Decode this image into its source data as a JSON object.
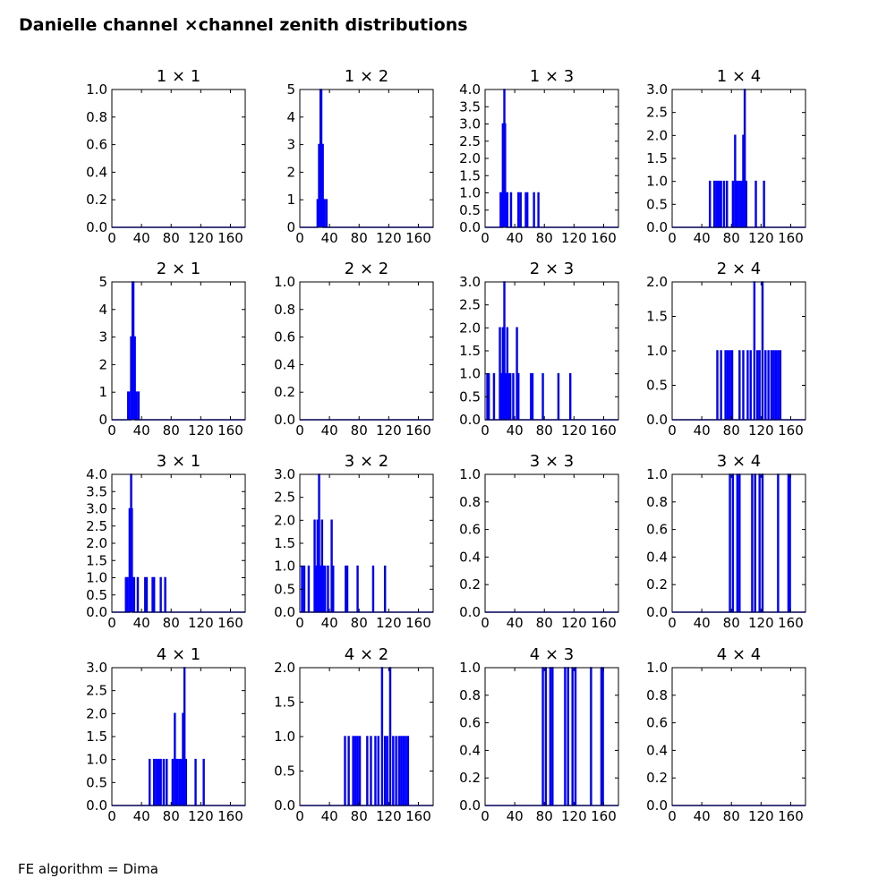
{
  "figure": {
    "title": "Danielle channel ×channel zenith distributions",
    "footer": "FE algorithm = Dima"
  },
  "chart_data": {
    "type": "line",
    "drawstyle": "steps",
    "series_color": "#0000ff",
    "x_ticks": [
      0,
      40,
      80,
      120,
      160
    ],
    "xlim": [
      0,
      180
    ],
    "panels": [
      {
        "title": "1 × 1",
        "ylim": [
          0,
          1
        ],
        "yticks": [
          "0.0",
          "0.2",
          "0.4",
          "0.6",
          "0.8",
          "1.0"
        ],
        "yvals": [
          0,
          0.2,
          0.4,
          0.6,
          0.8,
          1.0
        ],
        "spikes": []
      },
      {
        "title": "1 × 2",
        "ylim": [
          0,
          5
        ],
        "yticks": [
          "0",
          "1",
          "2",
          "3",
          "4",
          "5"
        ],
        "yvals": [
          0,
          1,
          2,
          3,
          4,
          5
        ],
        "spikes": [
          [
            24,
            1
          ],
          [
            25,
            1
          ],
          [
            26,
            3
          ],
          [
            27,
            3
          ],
          [
            28,
            5
          ],
          [
            29,
            5
          ],
          [
            30,
            3
          ],
          [
            31,
            3
          ],
          [
            33,
            1
          ],
          [
            36,
            1
          ]
        ]
      },
      {
        "title": "1 × 3",
        "ylim": [
          0,
          4
        ],
        "yticks": [
          "0.0",
          "0.5",
          "1.0",
          "1.5",
          "2.0",
          "2.5",
          "3.0",
          "3.5",
          "4.0"
        ],
        "yvals": [
          0,
          0.5,
          1,
          1.5,
          2,
          2.5,
          3,
          3.5,
          4
        ],
        "spikes": [
          [
            21,
            1
          ],
          [
            22,
            1
          ],
          [
            24,
            3
          ],
          [
            25,
            3
          ],
          [
            26,
            4
          ],
          [
            27,
            3
          ],
          [
            28,
            1
          ],
          [
            30,
            1
          ],
          [
            35,
            1
          ],
          [
            45,
            1
          ],
          [
            48,
            1
          ],
          [
            55,
            1
          ],
          [
            57,
            1
          ],
          [
            66,
            1
          ],
          [
            72,
            1
          ]
        ]
      },
      {
        "title": "1 × 4",
        "ylim": [
          0,
          3
        ],
        "yticks": [
          "0.0",
          "0.5",
          "1.0",
          "1.5",
          "2.0",
          "2.5",
          "3.0"
        ],
        "yvals": [
          0,
          0.5,
          1,
          1.5,
          2,
          2.5,
          3
        ],
        "spikes": [
          [
            51,
            1
          ],
          [
            57,
            1
          ],
          [
            60,
            1
          ],
          [
            62,
            1
          ],
          [
            64,
            1
          ],
          [
            66,
            1
          ],
          [
            70,
            1
          ],
          [
            74,
            1
          ],
          [
            82,
            1
          ],
          [
            85,
            2
          ],
          [
            87,
            1
          ],
          [
            89,
            1
          ],
          [
            92,
            1
          ],
          [
            94,
            1
          ],
          [
            96,
            2
          ],
          [
            98,
            3
          ],
          [
            100,
            1
          ],
          [
            113,
            1
          ],
          [
            124,
            1
          ]
        ]
      },
      {
        "title": "2 × 1",
        "ylim": [
          0,
          5
        ],
        "yticks": [
          "0",
          "1",
          "2",
          "3",
          "4",
          "5"
        ],
        "yvals": [
          0,
          1,
          2,
          3,
          4,
          5
        ],
        "spikes": [
          [
            22,
            1
          ],
          [
            23,
            1
          ],
          [
            26,
            3
          ],
          [
            27,
            3
          ],
          [
            28,
            5
          ],
          [
            29,
            5
          ],
          [
            30,
            3
          ],
          [
            31,
            3
          ],
          [
            33,
            1
          ],
          [
            36,
            1
          ]
        ]
      },
      {
        "title": "2 × 2",
        "ylim": [
          0,
          1
        ],
        "yticks": [
          "0.0",
          "0.2",
          "0.4",
          "0.6",
          "0.8",
          "1.0"
        ],
        "yvals": [
          0,
          0.2,
          0.4,
          0.6,
          0.8,
          1.0
        ],
        "spikes": []
      },
      {
        "title": "2 × 3",
        "ylim": [
          0,
          3
        ],
        "yticks": [
          "0.0",
          "0.5",
          "1.0",
          "1.5",
          "2.0",
          "2.5",
          "3.0"
        ],
        "yvals": [
          0,
          0.5,
          1,
          1.5,
          2,
          2.5,
          3
        ],
        "spikes": [
          [
            3,
            1
          ],
          [
            5,
            1
          ],
          [
            12,
            1
          ],
          [
            20,
            2
          ],
          [
            22,
            1
          ],
          [
            24,
            2
          ],
          [
            26,
            3
          ],
          [
            28,
            1
          ],
          [
            30,
            2
          ],
          [
            32,
            1
          ],
          [
            34,
            1
          ],
          [
            38,
            1
          ],
          [
            43,
            2
          ],
          [
            45,
            1
          ],
          [
            62,
            1
          ],
          [
            64,
            1
          ],
          [
            78,
            1
          ],
          [
            99,
            1
          ],
          [
            115,
            1
          ]
        ]
      },
      {
        "title": "2 × 4",
        "ylim": [
          0,
          2
        ],
        "yticks": [
          "0.0",
          "0.5",
          "1.0",
          "1.5",
          "2.0"
        ],
        "yvals": [
          0,
          0.5,
          1,
          1.5,
          2
        ],
        "spikes": [
          [
            61,
            1
          ],
          [
            66,
            1
          ],
          [
            72,
            1
          ],
          [
            75,
            1
          ],
          [
            78,
            1
          ],
          [
            81,
            1
          ],
          [
            91,
            1
          ],
          [
            96,
            1
          ],
          [
            102,
            1
          ],
          [
            106,
            1
          ],
          [
            111,
            2
          ],
          [
            115,
            1
          ],
          [
            118,
            1
          ],
          [
            122,
            2
          ],
          [
            126,
            1
          ],
          [
            130,
            1
          ],
          [
            134,
            1
          ],
          [
            137,
            1
          ],
          [
            140,
            1
          ],
          [
            143,
            1
          ],
          [
            146,
            1
          ]
        ]
      },
      {
        "title": "3 × 1",
        "ylim": [
          0,
          4
        ],
        "yticks": [
          "0.0",
          "0.5",
          "1.0",
          "1.5",
          "2.0",
          "2.5",
          "3.0",
          "3.5",
          "4.0"
        ],
        "yvals": [
          0,
          0.5,
          1,
          1.5,
          2,
          2.5,
          3,
          3.5,
          4
        ],
        "spikes": [
          [
            19,
            1
          ],
          [
            21,
            1
          ],
          [
            24,
            3
          ],
          [
            25,
            3
          ],
          [
            26,
            4
          ],
          [
            27,
            3
          ],
          [
            28,
            1
          ],
          [
            30,
            1
          ],
          [
            35,
            1
          ],
          [
            45,
            1
          ],
          [
            47,
            1
          ],
          [
            55,
            1
          ],
          [
            57,
            1
          ],
          [
            66,
            1
          ],
          [
            72,
            1
          ]
        ]
      },
      {
        "title": "3 × 2",
        "ylim": [
          0,
          3
        ],
        "yticks": [
          "0.0",
          "0.5",
          "1.0",
          "1.5",
          "2.0",
          "2.5",
          "3.0"
        ],
        "yvals": [
          0,
          0.5,
          1,
          1.5,
          2,
          2.5,
          3
        ],
        "spikes": [
          [
            3,
            1
          ],
          [
            6,
            1
          ],
          [
            12,
            1
          ],
          [
            20,
            2
          ],
          [
            22,
            1
          ],
          [
            24,
            2
          ],
          [
            26,
            3
          ],
          [
            28,
            1
          ],
          [
            30,
            2
          ],
          [
            32,
            1
          ],
          [
            34,
            1
          ],
          [
            38,
            1
          ],
          [
            43,
            2
          ],
          [
            45,
            1
          ],
          [
            62,
            1
          ],
          [
            64,
            1
          ],
          [
            78,
            1
          ],
          [
            99,
            1
          ],
          [
            115,
            1
          ]
        ]
      },
      {
        "title": "3 × 3",
        "ylim": [
          0,
          1
        ],
        "yticks": [
          "0.0",
          "0.2",
          "0.4",
          "0.6",
          "0.8",
          "1.0"
        ],
        "yvals": [
          0,
          0.2,
          0.4,
          0.6,
          0.8,
          1.0
        ],
        "spikes": []
      },
      {
        "title": "3 × 4",
        "ylim": [
          0,
          1
        ],
        "yticks": [
          "0.0",
          "0.2",
          "0.4",
          "0.6",
          "0.8",
          "1.0"
        ],
        "yvals": [
          0,
          0.2,
          0.4,
          0.6,
          0.8,
          1.0
        ],
        "spikes": [
          [
            78,
            1
          ],
          [
            82,
            1
          ],
          [
            88,
            1
          ],
          [
            91,
            1
          ],
          [
            108,
            1
          ],
          [
            112,
            1
          ],
          [
            118,
            1
          ],
          [
            122,
            1
          ],
          [
            143,
            1
          ],
          [
            157,
            1
          ],
          [
            159,
            1
          ]
        ]
      },
      {
        "title": "4 × 1",
        "ylim": [
          0,
          3
        ],
        "yticks": [
          "0.0",
          "0.5",
          "1.0",
          "1.5",
          "2.0",
          "2.5",
          "3.0"
        ],
        "yvals": [
          0,
          0.5,
          1,
          1.5,
          2,
          2.5,
          3
        ],
        "spikes": [
          [
            51,
            1
          ],
          [
            57,
            1
          ],
          [
            60,
            1
          ],
          [
            62,
            1
          ],
          [
            64,
            1
          ],
          [
            66,
            1
          ],
          [
            70,
            1
          ],
          [
            74,
            1
          ],
          [
            82,
            1
          ],
          [
            85,
            2
          ],
          [
            87,
            1
          ],
          [
            89,
            1
          ],
          [
            92,
            1
          ],
          [
            94,
            1
          ],
          [
            96,
            2
          ],
          [
            98,
            3
          ],
          [
            100,
            1
          ],
          [
            113,
            1
          ],
          [
            124,
            1
          ]
        ]
      },
      {
        "title": "4 × 2",
        "ylim": [
          0,
          2
        ],
        "yticks": [
          "0.0",
          "0.5",
          "1.0",
          "1.5",
          "2.0"
        ],
        "yvals": [
          0,
          0.5,
          1,
          1.5,
          2
        ],
        "spikes": [
          [
            61,
            1
          ],
          [
            66,
            1
          ],
          [
            72,
            1
          ],
          [
            75,
            1
          ],
          [
            78,
            1
          ],
          [
            81,
            1
          ],
          [
            91,
            1
          ],
          [
            96,
            1
          ],
          [
            102,
            1
          ],
          [
            106,
            1
          ],
          [
            111,
            2
          ],
          [
            115,
            1
          ],
          [
            118,
            1
          ],
          [
            122,
            2
          ],
          [
            126,
            1
          ],
          [
            130,
            1
          ],
          [
            134,
            1
          ],
          [
            137,
            1
          ],
          [
            140,
            1
          ],
          [
            143,
            1
          ],
          [
            146,
            1
          ]
        ]
      },
      {
        "title": "4 × 3",
        "ylim": [
          0,
          1
        ],
        "yticks": [
          "0.0",
          "0.2",
          "0.4",
          "0.6",
          "0.8",
          "1.0"
        ],
        "yvals": [
          0,
          0.2,
          0.4,
          0.6,
          0.8,
          1.0
        ],
        "spikes": [
          [
            78,
            1
          ],
          [
            82,
            1
          ],
          [
            88,
            1
          ],
          [
            91,
            1
          ],
          [
            108,
            1
          ],
          [
            112,
            1
          ],
          [
            118,
            1
          ],
          [
            122,
            1
          ],
          [
            143,
            1
          ],
          [
            157,
            1
          ],
          [
            159,
            1
          ]
        ]
      },
      {
        "title": "4 × 4",
        "ylim": [
          0,
          1
        ],
        "yticks": [
          "0.0",
          "0.2",
          "0.4",
          "0.6",
          "0.8",
          "1.0"
        ],
        "yvals": [
          0,
          0.2,
          0.4,
          0.6,
          0.8,
          1.0
        ],
        "spikes": []
      }
    ]
  }
}
